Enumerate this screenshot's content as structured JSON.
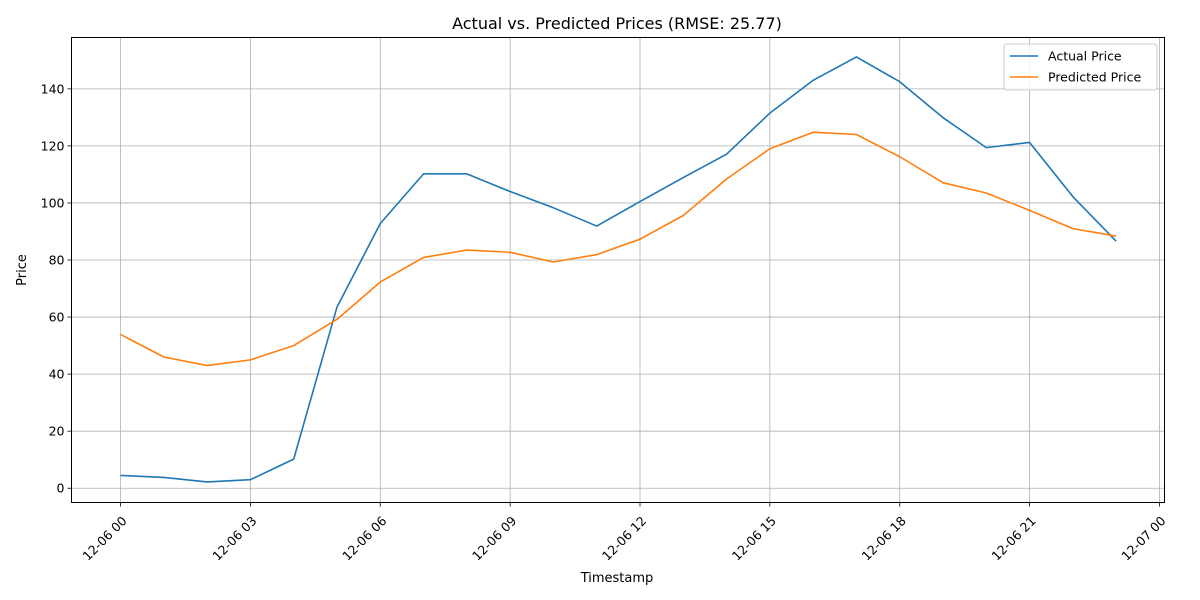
{
  "chart_data": {
    "type": "line",
    "title": "Actual vs. Predicted Prices (RMSE: 25.77)",
    "xlabel": "Timestamp",
    "ylabel": "Price",
    "x": [
      "12-06 00",
      "12-06 01",
      "12-06 02",
      "12-06 03",
      "12-06 04",
      "12-06 05",
      "12-06 06",
      "12-06 07",
      "12-06 08",
      "12-06 09",
      "12-06 10",
      "12-06 11",
      "12-06 12",
      "12-06 13",
      "12-06 14",
      "12-06 15",
      "12-06 16",
      "12-06 17",
      "12-06 18",
      "12-06 19",
      "12-06 20",
      "12-06 21",
      "12-06 22",
      "12-06 23"
    ],
    "xlim": [
      "12-05 22:52",
      "12-07 00:07"
    ],
    "x_ticks": [
      "12-06 00",
      "12-06 03",
      "12-06 06",
      "12-06 09",
      "12-06 12",
      "12-06 15",
      "12-06 18",
      "12-06 21",
      "12-07 00"
    ],
    "ylim": [
      -5,
      158
    ],
    "y_ticks": [
      0,
      20,
      40,
      60,
      80,
      100,
      120,
      140
    ],
    "grid": true,
    "legend_position": "top-right",
    "series": [
      {
        "name": "Actual Price",
        "color": "#1f77b4",
        "values": [
          4.5,
          3.8,
          2.2,
          3.0,
          10.2,
          63.5,
          92.8,
          110.2,
          110.2,
          104.0,
          98.3,
          91.9,
          100.5,
          108.9,
          117.1,
          131.5,
          143.0,
          151.2,
          142.5,
          129.9,
          119.4,
          121.2,
          102.2,
          86.6
        ]
      },
      {
        "name": "Predicted Price",
        "color": "#ff7f0e",
        "values": [
          53.9,
          46.0,
          43.0,
          45.0,
          50.0,
          59.2,
          72.3,
          80.9,
          83.5,
          82.7,
          79.3,
          81.9,
          87.3,
          95.6,
          108.4,
          119.0,
          124.8,
          124.0,
          116.2,
          107.1,
          103.5,
          97.4,
          91.0,
          88.4
        ]
      }
    ]
  }
}
